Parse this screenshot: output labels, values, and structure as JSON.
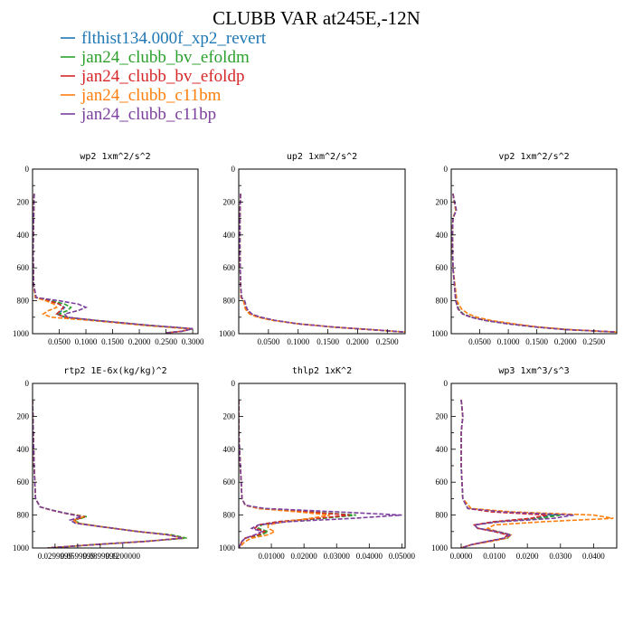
{
  "figure": {
    "title": "CLUBB VAR at245E,-12N",
    "legend": [
      {
        "label": "flthist134.000f_xp2_revert",
        "color": "#1f77b4"
      },
      {
        "label": "jan24_clubb_bv_efoldm",
        "color": "#2ca02c"
      },
      {
        "label": "jan24_clubb_bv_efoldp",
        "color": "#d62728"
      },
      {
        "label": "jan24_clubb_c11bm",
        "color": "#ff7f0e"
      },
      {
        "label": "jan24_clubb_c11bp",
        "color": "#7b3f9e"
      }
    ]
  },
  "chart_data": [
    {
      "type": "line",
      "title": "wp2   1xm^2/s^2",
      "xlim": [
        0,
        0.31
      ],
      "ylim": [
        1000,
        0
      ],
      "xticks": [
        0.05,
        0.1,
        0.15,
        0.2,
        0.25,
        0.3
      ],
      "xtick_labels": [
        "0.0500",
        "0.1000",
        "0.1500",
        "0.2000",
        "0.2500",
        "0.3000"
      ],
      "yticks": [
        0,
        200,
        400,
        600,
        800,
        1000
      ],
      "y": [
        150,
        300,
        500,
        700,
        780,
        800,
        820,
        840,
        860,
        880,
        900,
        920,
        950,
        970,
        985,
        995
      ],
      "series": [
        {
          "x": [
            0.003,
            0.002,
            0.001,
            0.002,
            0.005,
            0.03,
            0.05,
            0.06,
            0.055,
            0.045,
            0.06,
            0.12,
            0.22,
            0.3,
            0.28,
            0.25
          ]
        },
        {
          "x": [
            0.003,
            0.002,
            0.001,
            0.002,
            0.006,
            0.035,
            0.06,
            0.072,
            0.065,
            0.05,
            0.062,
            0.12,
            0.22,
            0.3,
            0.28,
            0.25
          ]
        },
        {
          "x": [
            0.003,
            0.002,
            0.001,
            0.002,
            0.005,
            0.03,
            0.05,
            0.058,
            0.052,
            0.045,
            0.06,
            0.12,
            0.22,
            0.3,
            0.28,
            0.25
          ]
        },
        {
          "x": [
            0.003,
            0.002,
            0.001,
            0.002,
            0.005,
            0.025,
            0.04,
            0.045,
            0.03,
            0.02,
            0.035,
            0.11,
            0.21,
            0.29,
            0.28,
            0.25
          ]
        },
        {
          "x": [
            0.003,
            0.002,
            0.001,
            0.002,
            0.007,
            0.05,
            0.085,
            0.1,
            0.085,
            0.06,
            0.065,
            0.12,
            0.22,
            0.3,
            0.28,
            0.25
          ]
        }
      ]
    },
    {
      "type": "line",
      "title": "up2   1xm^2/s^2",
      "xlim": [
        0,
        0.28
      ],
      "ylim": [
        1000,
        0
      ],
      "xticks": [
        0.05,
        0.1,
        0.15,
        0.2,
        0.25
      ],
      "xtick_labels": [
        "0.0500",
        "0.1000",
        "0.1500",
        "0.2000",
        "0.2500"
      ],
      "yticks": [
        0,
        200,
        400,
        600,
        800,
        1000
      ],
      "y": [
        150,
        300,
        500,
        700,
        780,
        800,
        850,
        880,
        900,
        920,
        940,
        960,
        975,
        990
      ],
      "series": [
        {
          "x": [
            0.003,
            0.002,
            0.002,
            0.003,
            0.004,
            0.008,
            0.012,
            0.02,
            0.035,
            0.06,
            0.1,
            0.16,
            0.22,
            0.28
          ]
        },
        {
          "x": [
            0.003,
            0.002,
            0.002,
            0.003,
            0.004,
            0.009,
            0.013,
            0.021,
            0.036,
            0.061,
            0.1,
            0.16,
            0.22,
            0.28
          ]
        },
        {
          "x": [
            0.003,
            0.002,
            0.002,
            0.003,
            0.004,
            0.008,
            0.012,
            0.02,
            0.035,
            0.06,
            0.1,
            0.16,
            0.22,
            0.28
          ]
        },
        {
          "x": [
            0.003,
            0.002,
            0.002,
            0.003,
            0.004,
            0.008,
            0.011,
            0.018,
            0.032,
            0.058,
            0.1,
            0.16,
            0.22,
            0.28
          ]
        },
        {
          "x": [
            0.003,
            0.002,
            0.002,
            0.003,
            0.005,
            0.01,
            0.014,
            0.022,
            0.037,
            0.062,
            0.1,
            0.16,
            0.22,
            0.28
          ]
        }
      ]
    },
    {
      "type": "line",
      "title": "vp2   1xm^2/s^2",
      "xlim": [
        0,
        0.29
      ],
      "ylim": [
        1000,
        0
      ],
      "xticks": [
        0.05,
        0.1,
        0.15,
        0.2,
        0.25
      ],
      "xtick_labels": [
        "0.0500",
        "0.1000",
        "0.1500",
        "0.2000",
        "0.2500"
      ],
      "yticks": [
        0,
        200,
        400,
        600,
        800,
        1000
      ],
      "y": [
        150,
        250,
        300,
        400,
        600,
        800,
        850,
        880,
        900,
        920,
        940,
        960,
        975,
        990
      ],
      "series": [
        {
          "x": [
            0.003,
            0.008,
            0.003,
            0.002,
            0.003,
            0.008,
            0.012,
            0.02,
            0.035,
            0.06,
            0.1,
            0.15,
            0.2,
            0.29
          ]
        },
        {
          "x": [
            0.003,
            0.008,
            0.003,
            0.002,
            0.003,
            0.009,
            0.013,
            0.021,
            0.036,
            0.061,
            0.1,
            0.15,
            0.2,
            0.29
          ]
        },
        {
          "x": [
            0.003,
            0.008,
            0.003,
            0.002,
            0.003,
            0.008,
            0.012,
            0.02,
            0.035,
            0.06,
            0.1,
            0.15,
            0.2,
            0.29
          ]
        },
        {
          "x": [
            0.003,
            0.008,
            0.003,
            0.002,
            0.003,
            0.01,
            0.018,
            0.03,
            0.045,
            0.07,
            0.11,
            0.155,
            0.205,
            0.29
          ]
        },
        {
          "x": [
            0.003,
            0.009,
            0.003,
            0.002,
            0.003,
            0.008,
            0.012,
            0.02,
            0.035,
            0.06,
            0.1,
            0.15,
            0.2,
            0.29
          ]
        }
      ]
    },
    {
      "type": "line",
      "title": "rtp2   1E-6x(kg/kg)^2",
      "xlim": [
        0,
        0.22
      ],
      "ylim": [
        1000,
        0
      ],
      "xticks": [
        0.0299,
        0.05999,
        0.08999,
        0.12
      ],
      "xtick_labels": [
        "0.0299999",
        "0.0599999",
        "0.0899999",
        "0.1200000"
      ],
      "xtick_label_positions": [
        0.0299,
        0.0599,
        0.0899,
        0.12
      ],
      "yticks": [
        0,
        200,
        400,
        600,
        800,
        1000
      ],
      "y": [
        100,
        300,
        500,
        700,
        750,
        770,
        790,
        810,
        830,
        850,
        870,
        900,
        920,
        940,
        960,
        980,
        1000
      ],
      "series": [
        {
          "x": [
            0.0,
            0.001,
            0.002,
            0.004,
            0.01,
            0.025,
            0.045,
            0.07,
            0.055,
            0.06,
            0.09,
            0.14,
            0.18,
            0.2,
            0.15,
            0.08,
            0.02
          ]
        },
        {
          "x": [
            0.0,
            0.001,
            0.002,
            0.004,
            0.01,
            0.026,
            0.046,
            0.072,
            0.056,
            0.062,
            0.09,
            0.14,
            0.185,
            0.205,
            0.15,
            0.08,
            0.02
          ]
        },
        {
          "x": [
            0.0,
            0.001,
            0.002,
            0.004,
            0.01,
            0.025,
            0.045,
            0.07,
            0.055,
            0.06,
            0.09,
            0.14,
            0.18,
            0.2,
            0.15,
            0.08,
            0.02
          ]
        },
        {
          "x": [
            0.0,
            0.001,
            0.002,
            0.004,
            0.01,
            0.024,
            0.044,
            0.068,
            0.054,
            0.06,
            0.09,
            0.14,
            0.18,
            0.2,
            0.15,
            0.08,
            0.02
          ]
        },
        {
          "x": [
            0.0,
            0.001,
            0.002,
            0.004,
            0.01,
            0.025,
            0.045,
            0.065,
            0.05,
            0.057,
            0.09,
            0.14,
            0.18,
            0.2,
            0.15,
            0.08,
            0.02
          ]
        }
      ]
    },
    {
      "type": "line",
      "title": "thlp2   1xK^2",
      "xlim": [
        0,
        0.051
      ],
      "ylim": [
        1000,
        0
      ],
      "xticks": [
        0.01,
        0.02,
        0.03,
        0.04,
        0.05
      ],
      "xtick_labels": [
        "0.01000",
        "0.02000",
        "0.03000",
        "0.04000",
        "0.05000"
      ],
      "yticks": [
        0,
        200,
        400,
        600,
        800,
        1000
      ],
      "y": [
        100,
        300,
        500,
        700,
        740,
        760,
        780,
        800,
        820,
        840,
        860,
        880,
        900,
        920,
        940,
        960,
        980,
        1000
      ],
      "series": [
        {
          "x": [
            0.0,
            0.0,
            0.0005,
            0.001,
            0.002,
            0.006,
            0.02,
            0.035,
            0.025,
            0.012,
            0.006,
            0.005,
            0.008,
            0.006,
            0.002,
            0.001,
            0.0005,
            0.0
          ]
        },
        {
          "x": [
            0.0,
            0.0,
            0.0005,
            0.001,
            0.002,
            0.007,
            0.022,
            0.036,
            0.026,
            0.013,
            0.007,
            0.006,
            0.009,
            0.007,
            0.002,
            0.001,
            0.0005,
            0.0
          ]
        },
        {
          "x": [
            0.0,
            0.0,
            0.0005,
            0.001,
            0.002,
            0.006,
            0.021,
            0.034,
            0.024,
            0.012,
            0.006,
            0.005,
            0.008,
            0.006,
            0.002,
            0.001,
            0.0005,
            0.0
          ]
        },
        {
          "x": [
            0.0,
            0.0,
            0.0005,
            0.001,
            0.002,
            0.006,
            0.018,
            0.028,
            0.022,
            0.014,
            0.009,
            0.009,
            0.011,
            0.009,
            0.004,
            0.002,
            0.001,
            0.0
          ]
        },
        {
          "x": [
            0.0,
            0.0,
            0.0005,
            0.001,
            0.002,
            0.008,
            0.03,
            0.05,
            0.035,
            0.015,
            0.006,
            0.004,
            0.007,
            0.005,
            0.002,
            0.001,
            0.0005,
            0.0
          ]
        }
      ]
    },
    {
      "type": "line",
      "title": "wp3   1xm^3/s^3",
      "xlim": [
        -0.003,
        0.047
      ],
      "ylim": [
        1000,
        0
      ],
      "xticks": [
        0.0,
        0.01,
        0.02,
        0.03,
        0.04
      ],
      "xtick_labels": [
        "0.0000",
        "0.0100",
        "0.0200",
        "0.0300",
        "0.0400"
      ],
      "yticks": [
        0,
        200,
        400,
        600,
        800,
        1000
      ],
      "y": [
        100,
        200,
        300,
        500,
        700,
        760,
        780,
        800,
        820,
        840,
        860,
        880,
        900,
        920,
        940,
        960,
        980,
        1000
      ],
      "series": [
        {
          "x": [
            0.0,
            0.0005,
            0.0,
            0.0,
            0.0005,
            0.002,
            0.01,
            0.028,
            0.022,
            0.01,
            0.004,
            0.005,
            0.01,
            0.014,
            0.013,
            0.008,
            0.003,
            0.0
          ]
        },
        {
          "x": [
            0.0,
            0.0005,
            0.0,
            0.0,
            0.0005,
            0.002,
            0.011,
            0.03,
            0.024,
            0.011,
            0.004,
            0.005,
            0.011,
            0.015,
            0.014,
            0.008,
            0.003,
            0.0
          ]
        },
        {
          "x": [
            0.0,
            0.0005,
            0.0,
            0.0,
            0.0005,
            0.002,
            0.009,
            0.026,
            0.021,
            0.01,
            0.004,
            0.005,
            0.01,
            0.014,
            0.013,
            0.008,
            0.003,
            0.0
          ]
        },
        {
          "x": [
            0.0,
            0.0005,
            0.0,
            0.0,
            0.0005,
            0.003,
            0.015,
            0.04,
            0.046,
            0.025,
            0.01,
            0.008,
            0.011,
            0.015,
            0.014,
            0.009,
            0.003,
            0.0
          ]
        },
        {
          "x": [
            0.0,
            0.0005,
            0.0,
            0.0,
            0.0005,
            0.002,
            0.012,
            0.034,
            0.028,
            0.012,
            0.004,
            0.005,
            0.011,
            0.015,
            0.013,
            0.008,
            0.003,
            0.0
          ]
        }
      ]
    }
  ]
}
